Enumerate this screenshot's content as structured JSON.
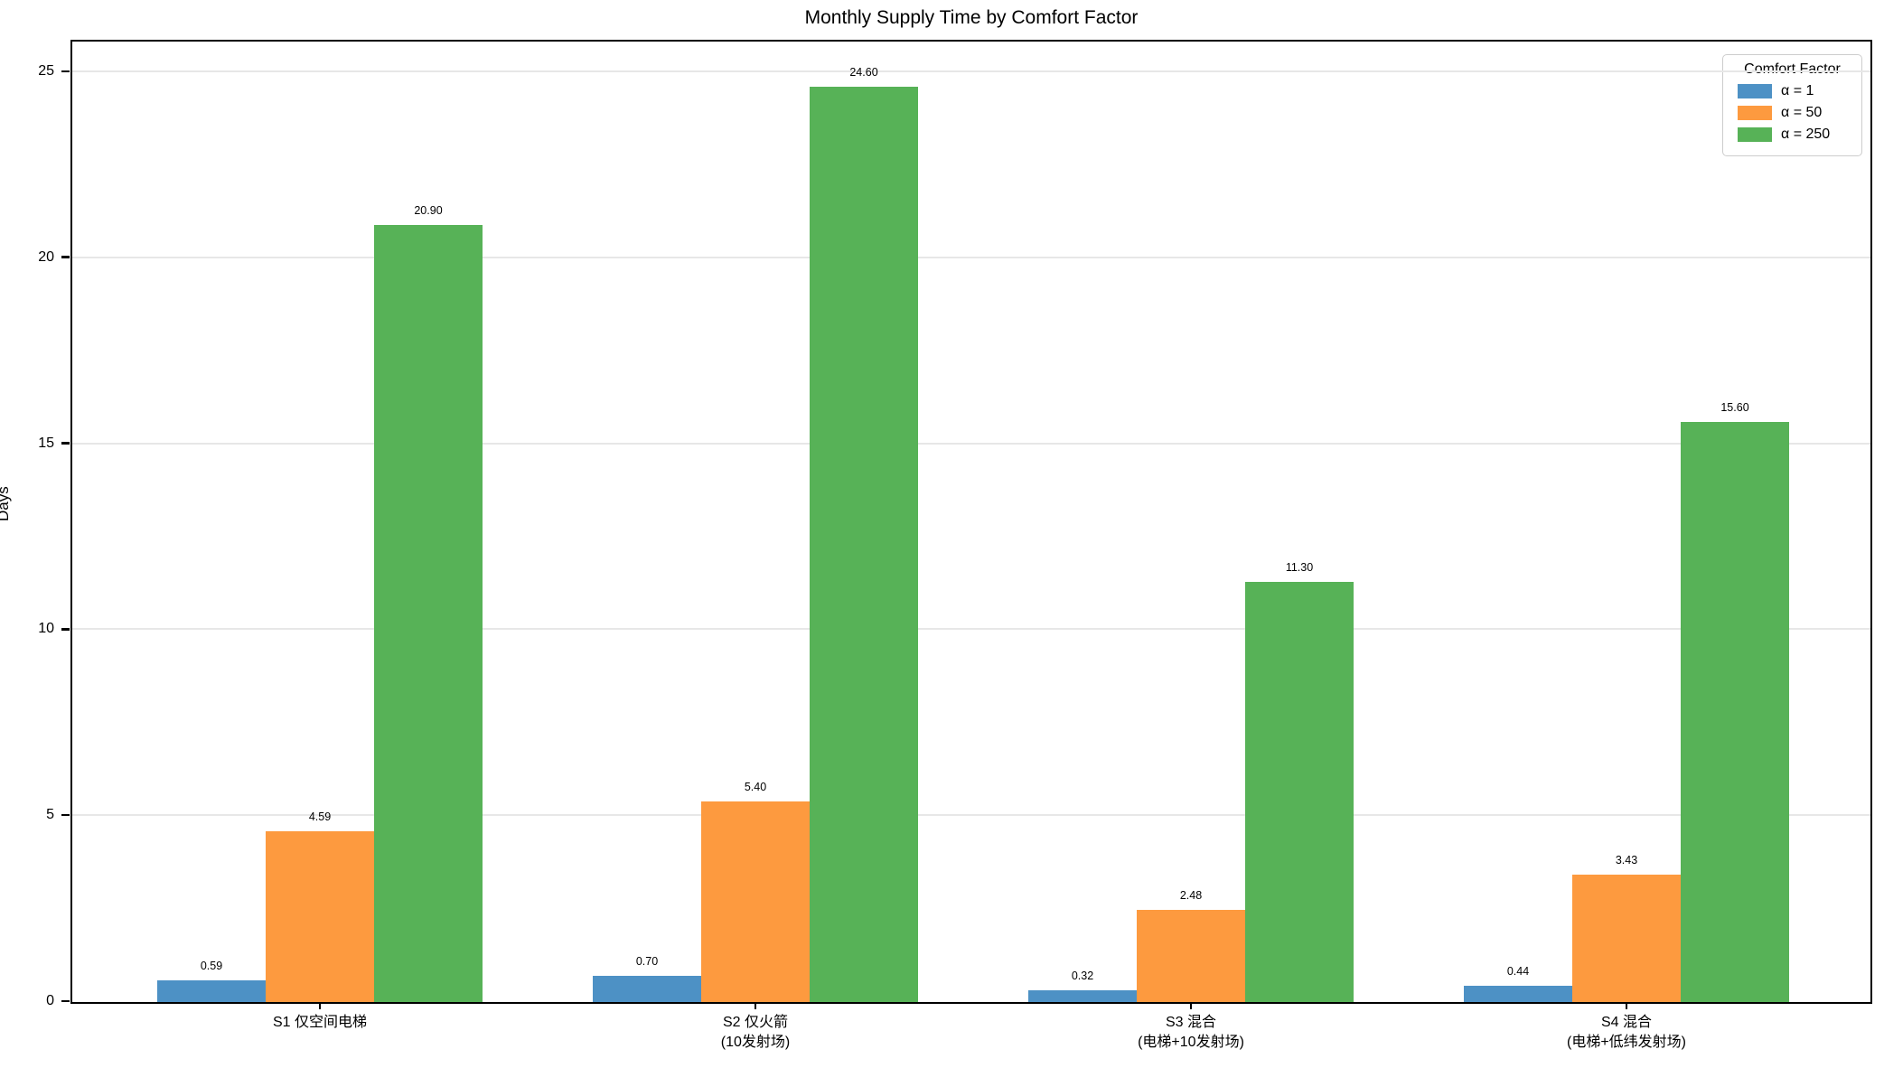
{
  "chart_data": {
    "type": "bar",
    "title": "Monthly Supply Time by Comfort Factor",
    "xlabel": "",
    "ylabel": "Days",
    "ylim": [
      0,
      25.8
    ],
    "yticks": [
      0,
      5,
      10,
      15,
      20,
      25
    ],
    "grid": "horizontal-light",
    "legend": {
      "title": "Comfort Factor",
      "position": "upper right"
    },
    "categories": [
      [
        "S1 仅空间电梯"
      ],
      [
        "S2 仅火箭",
        "(10发射场)"
      ],
      [
        "S3 混合",
        "(电梯+10发射场)"
      ],
      [
        "S4 混合",
        "(电梯+低纬发射场)"
      ]
    ],
    "series": [
      {
        "name": "α = 1",
        "color": "#4D91C5",
        "values": [
          0.59,
          0.7,
          0.32,
          0.44
        ],
        "labels": [
          "0.59",
          "0.70",
          "0.32",
          "0.44"
        ]
      },
      {
        "name": "α = 50",
        "color": "#FD9A3F",
        "values": [
          4.59,
          5.4,
          2.48,
          3.43
        ],
        "labels": [
          "4.59",
          "5.40",
          "2.48",
          "3.43"
        ]
      },
      {
        "name": "α = 250",
        "color": "#57B257",
        "values": [
          20.9,
          24.6,
          11.3,
          15.6
        ],
        "labels": [
          "20.90",
          "24.60",
          "11.30",
          "15.60"
        ]
      }
    ]
  },
  "colors": {
    "spine": "#000000",
    "gridline": "#e7e7e7",
    "text": "#000000",
    "background": "#ffffff"
  }
}
